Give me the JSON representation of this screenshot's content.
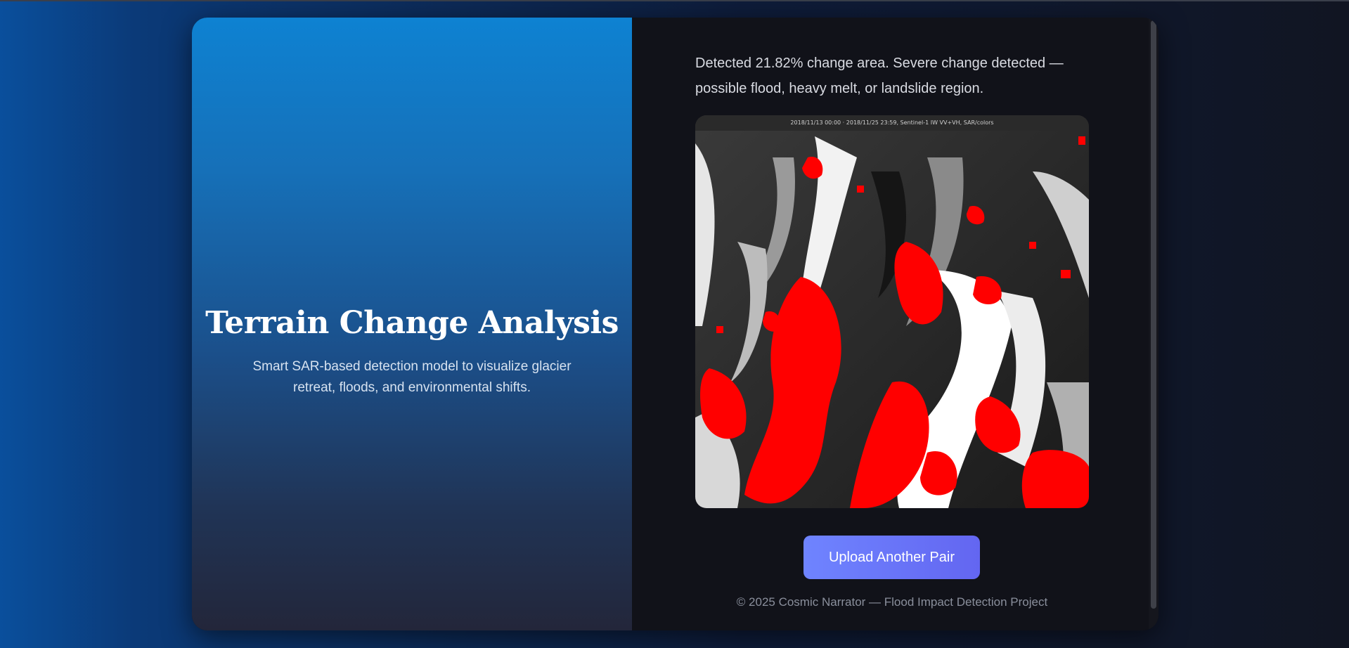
{
  "hero": {
    "title": "Terrain Change Analysis",
    "subtitle": "Smart SAR-based detection model to visualize glacier retreat, floods, and environmental shifts."
  },
  "result": {
    "description": "Detected 21.82% change area. Severe change detected — possible flood, heavy melt, or landslide region.",
    "change_percent": 21.82,
    "image": {
      "header_text": "2018/11/13 00:00 · 2018/11/25 23:59, Sentinel-1 IW VV+VH, SAR/colors"
    },
    "upload_button_label": "Upload Another Pair"
  },
  "footer": {
    "text": "© 2025 Cosmic Narrator — Flood Impact Detection Project"
  },
  "colors": {
    "accent": "#6366f1",
    "change_highlight": "#ff0000"
  }
}
